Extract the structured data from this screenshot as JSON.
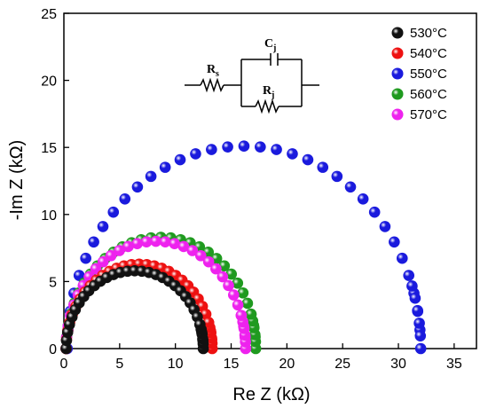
{
  "chart_data": {
    "type": "scatter",
    "xlabel": "Re Z (kΩ)",
    "ylabel": "-Im Z (kΩ)",
    "xlim": [
      0,
      37
    ],
    "ylim": [
      0,
      25
    ],
    "xticks": [
      0,
      5,
      10,
      15,
      20,
      25,
      30,
      35
    ],
    "yticks": [
      0,
      5,
      10,
      15,
      20,
      25
    ],
    "grid": false,
    "legend_position": "top-right",
    "series": [
      {
        "name": "530°C",
        "color": "#111111",
        "arc": {
          "r_start": 0.2,
          "r_end": 12.5,
          "peak": 5.8
        }
      },
      {
        "name": "540°C",
        "color": "#ee1111",
        "arc": {
          "r_start": 0.2,
          "r_end": 13.3,
          "peak": 6.3
        }
      },
      {
        "name": "550°C",
        "color": "#1a1add",
        "arc": {
          "r_start": 0.3,
          "r_end": 32.0,
          "peak": 15.1
        }
      },
      {
        "name": "560°C",
        "color": "#1f9a1f",
        "arc": {
          "r_start": 0.2,
          "r_end": 17.2,
          "peak": 8.3
        }
      },
      {
        "name": "570°C",
        "color": "#ee22ee",
        "arc": {
          "r_start": 0.2,
          "r_end": 16.3,
          "peak": 8.0
        }
      }
    ],
    "inset_circuit": {
      "labels": {
        "rs": "R",
        "rs_sub": "s",
        "cj": "C",
        "cj_sub": "j",
        "rj": "R",
        "rj_sub": "j"
      }
    }
  }
}
